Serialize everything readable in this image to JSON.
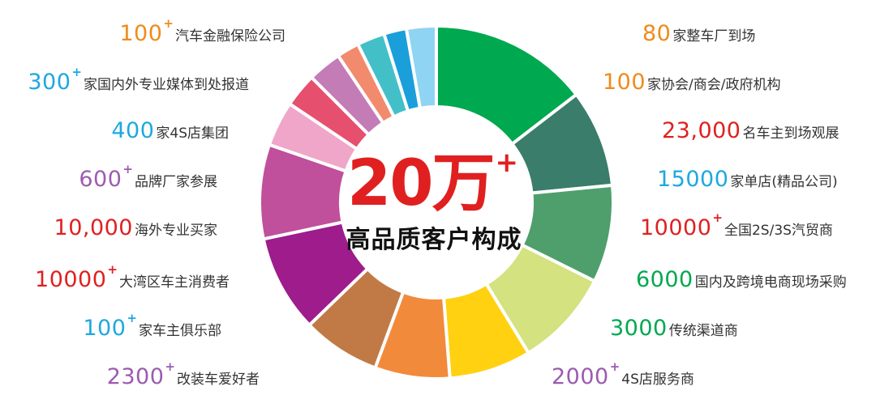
{
  "chart_data": {
    "type": "pie",
    "donut": true,
    "center": {
      "big": "20万",
      "plus": "+",
      "sub": "高品质客户构成"
    },
    "slices": [
      {
        "num": "80",
        "sup": "",
        "text": "家整车厂到场",
        "color": "#00a84f",
        "numColor": "#f08a1d",
        "weight": 15.5
      },
      {
        "num": "100",
        "sup": "",
        "text": "家协会/商会/政府机构",
        "color": "#3a7d6a",
        "numColor": "#f08a1d",
        "weight": 9.5
      },
      {
        "num": "23,000",
        "sup": "",
        "text": "名车主到场观展",
        "color": "#4f9f6c",
        "numColor": "#e02020",
        "weight": 9.5
      },
      {
        "num": "15000",
        "sup": "",
        "text": "家单店(精品公司)",
        "color": "#d4e27f",
        "numColor": "#1ea8df",
        "weight": 9.5
      },
      {
        "num": "10000",
        "sup": "+",
        "text": "全国2S/3S汽贸商",
        "color": "#ffd110",
        "numColor": "#e02020",
        "weight": 8.0
      },
      {
        "num": "6000",
        "sup": "",
        "text": "国内及跨境电商现场采购",
        "color": "#f28a3c",
        "numColor": "#00a84f",
        "weight": 7.3
      },
      {
        "num": "3000",
        "sup": "",
        "text": "传统渠道商",
        "color": "#c17a45",
        "numColor": "#00a84f",
        "weight": 7.6
      },
      {
        "num": "2000",
        "sup": "+",
        "text": "4S店服务商",
        "color": "#9e1c8c",
        "numColor": "#9c5bb0",
        "weight": 9.5
      },
      {
        "num": "2300",
        "sup": "+",
        "text": "改装车爱好者",
        "color": "#c04f9c",
        "numColor": "#9c5bb0",
        "weight": 9.2
      },
      {
        "num": "100",
        "sup": "+",
        "text": "家车主俱乐部",
        "color": "#f0a6c8",
        "numColor": "#1ea8df",
        "weight": 4.4
      },
      {
        "num": "10000",
        "sup": "+",
        "text": "大湾区车主消费者",
        "color": "#e6506e",
        "numColor": "#e02020",
        "weight": 3.3
      },
      {
        "num": "10,000",
        "sup": "",
        "text": "海外专业买家",
        "color": "#c47cb7",
        "numColor": "#e02020",
        "weight": 3.3
      },
      {
        "num": "600",
        "sup": "+",
        "text": "品牌厂家参展",
        "color": "#f28b6e",
        "numColor": "#9c5bb0",
        "weight": 2.2
      },
      {
        "num": "400",
        "sup": "",
        "text": "家4S店集团",
        "color": "#43c0c7",
        "numColor": "#1ea8df",
        "weight": 2.7
      },
      {
        "num": "300",
        "sup": "+",
        "text": "家国内外专业媒体到处报道",
        "color": "#1a9fdb",
        "numColor": "#1ea8df",
        "weight": 2.2
      },
      {
        "num": "100",
        "sup": "+",
        "text": "汽车金融保险公司",
        "color": "#8fd4f3",
        "numColor": "#f08a1d",
        "weight": 2.9
      }
    ]
  }
}
